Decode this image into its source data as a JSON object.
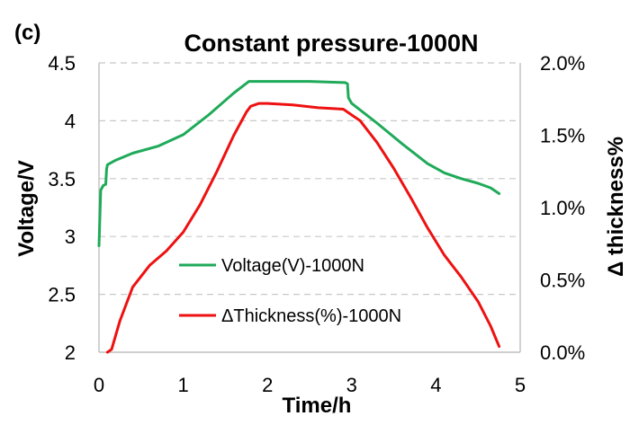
{
  "panel_label": "(c)",
  "colors": {
    "voltage": "#1faa59",
    "thickness": "#ee1111",
    "grid": "#c8c8c8",
    "axis": "#bfbfbf"
  },
  "chart_data": {
    "type": "line",
    "title": "Constant pressure-1000N",
    "xlabel": "Time/h",
    "ylabel": "Voltage/V",
    "y2label": "Δ thickness%",
    "xlim": [
      0,
      5
    ],
    "ylim": [
      2,
      4.5
    ],
    "y2lim": [
      0,
      2
    ],
    "x_ticks": [
      "0",
      "1",
      "2",
      "3",
      "4",
      "5"
    ],
    "y_ticks": [
      "2",
      "2.5",
      "3",
      "3.5",
      "4",
      "4.5"
    ],
    "y2_ticks": [
      "0.0%",
      "0.5%",
      "1.0%",
      "1.5%",
      "2.0%"
    ],
    "legend_position": "center-left",
    "series": [
      {
        "name": "Voltage(V)-1000N",
        "axis": "left",
        "x": [
          0.0,
          0.02,
          0.05,
          0.08,
          0.09,
          0.1,
          0.2,
          0.4,
          0.7,
          1.0,
          1.3,
          1.6,
          1.78,
          2.0,
          2.5,
          2.92,
          2.95,
          2.96,
          3.0,
          3.3,
          3.6,
          3.9,
          4.1,
          4.3,
          4.5,
          4.65,
          4.75
        ],
        "values": [
          2.92,
          3.4,
          3.44,
          3.45,
          3.58,
          3.62,
          3.66,
          3.72,
          3.78,
          3.88,
          4.05,
          4.24,
          4.34,
          4.34,
          4.34,
          4.33,
          4.32,
          4.2,
          4.15,
          3.98,
          3.8,
          3.63,
          3.55,
          3.5,
          3.46,
          3.42,
          3.37
        ]
      },
      {
        "name": "ΔThickness(%)-1000N",
        "axis": "right",
        "x": [
          0.1,
          0.15,
          0.25,
          0.4,
          0.6,
          0.8,
          1.0,
          1.2,
          1.4,
          1.6,
          1.75,
          1.8,
          1.9,
          2.0,
          2.3,
          2.6,
          2.9,
          3.1,
          3.3,
          3.5,
          3.7,
          3.9,
          4.1,
          4.3,
          4.5,
          4.65,
          4.75
        ],
        "values": [
          0.0,
          0.02,
          0.22,
          0.45,
          0.6,
          0.7,
          0.83,
          1.02,
          1.25,
          1.5,
          1.66,
          1.7,
          1.72,
          1.72,
          1.71,
          1.69,
          1.68,
          1.6,
          1.45,
          1.27,
          1.07,
          0.86,
          0.67,
          0.52,
          0.35,
          0.18,
          0.04
        ]
      }
    ]
  }
}
